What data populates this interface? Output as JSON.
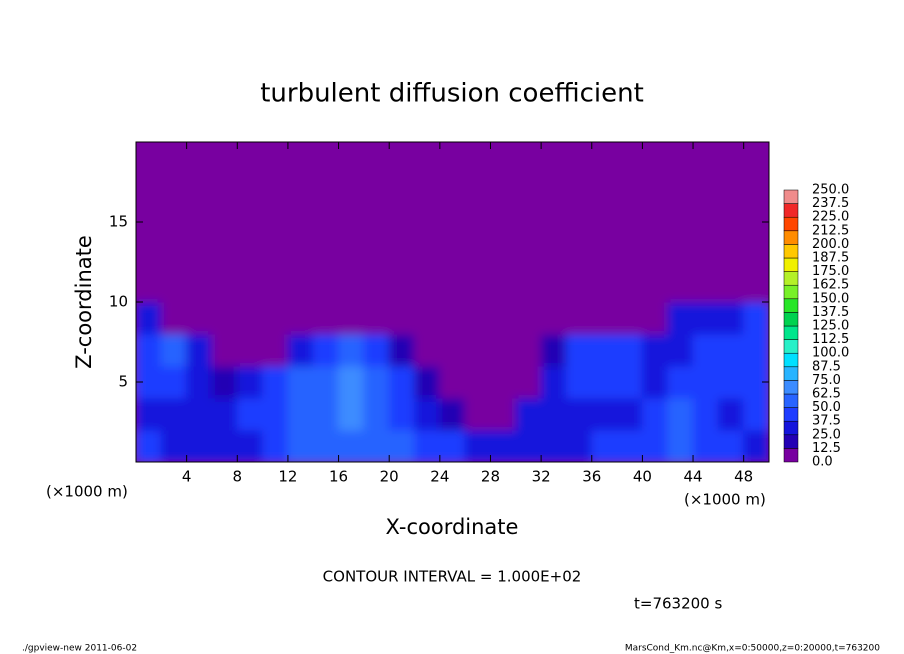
{
  "chart_data": {
    "type": "heatmap",
    "title": "turbulent diffusion coefficient",
    "x_label": "X-coordinate",
    "y_label": "Z-coordinate",
    "x_unit": "(×1000 m)",
    "y_unit": "(×1000 m)",
    "xlim": [
      0,
      50
    ],
    "ylim": [
      0,
      20
    ],
    "xticks": [
      4,
      8,
      12,
      16,
      20,
      24,
      28,
      32,
      36,
      40,
      44,
      48
    ],
    "yticks": [
      5,
      10,
      15
    ],
    "xbins": [
      0,
      2,
      4,
      6,
      8,
      10,
      12,
      14,
      16,
      18,
      20,
      22,
      24,
      26,
      28,
      30,
      32,
      34,
      36,
      38,
      40,
      42,
      44,
      46,
      48,
      50
    ],
    "ybins": [
      0,
      2,
      4,
      6,
      8,
      10,
      12,
      14,
      16,
      18,
      20
    ],
    "values": [
      [
        40,
        35,
        30,
        25,
        35,
        45,
        50,
        55,
        60,
        55,
        50,
        45,
        40,
        35,
        30,
        25,
        30,
        35,
        40,
        40,
        45,
        60,
        45,
        40,
        35
      ],
      [
        35,
        30,
        25,
        35,
        40,
        45,
        55,
        60,
        65,
        60,
        45,
        35,
        20,
        10,
        0,
        30,
        35,
        30,
        30,
        35,
        40,
        55,
        40,
        35,
        40
      ],
      [
        40,
        45,
        25,
        20,
        30,
        40,
        50,
        55,
        65,
        60,
        40,
        20,
        10,
        0,
        0,
        0,
        35,
        40,
        40,
        40,
        35,
        45,
        45,
        40,
        45
      ],
      [
        40,
        50,
        30,
        0,
        0,
        0,
        25,
        45,
        50,
        40,
        15,
        0,
        0,
        0,
        0,
        0,
        20,
        40,
        45,
        40,
        30,
        35,
        40,
        45,
        45
      ],
      [
        30,
        0,
        0,
        0,
        0,
        0,
        0,
        0,
        0,
        0,
        0,
        0,
        0,
        0,
        0,
        0,
        0,
        0,
        0,
        0,
        10,
        25,
        30,
        35,
        40
      ],
      [
        0,
        0,
        0,
        0,
        0,
        0,
        0,
        0,
        0,
        0,
        0,
        0,
        0,
        0,
        0,
        0,
        0,
        0,
        0,
        0,
        0,
        0,
        0,
        0,
        0
      ],
      [
        0,
        0,
        0,
        0,
        0,
        0,
        0,
        0,
        0,
        0,
        0,
        0,
        0,
        0,
        0,
        0,
        0,
        0,
        0,
        0,
        0,
        0,
        0,
        0,
        0
      ],
      [
        0,
        0,
        0,
        0,
        0,
        0,
        0,
        0,
        0,
        0,
        0,
        0,
        0,
        0,
        0,
        0,
        0,
        0,
        0,
        0,
        0,
        0,
        0,
        0,
        0
      ],
      [
        0,
        0,
        0,
        0,
        0,
        0,
        0,
        0,
        0,
        0,
        0,
        0,
        0,
        0,
        0,
        0,
        0,
        0,
        0,
        0,
        0,
        0,
        0,
        0,
        0
      ],
      [
        0,
        0,
        0,
        0,
        0,
        0,
        0,
        0,
        0,
        0,
        0,
        0,
        0,
        0,
        0,
        0,
        0,
        0,
        0,
        0,
        0,
        0,
        0,
        0,
        0
      ]
    ],
    "levels": [
      {
        "value": 0,
        "label": "0.0"
      },
      12.5,
      {
        "value": 25,
        "label": "25.0"
      },
      37.5,
      {
        "value": 50,
        "label": "50.0"
      },
      62.5,
      {
        "value": 75,
        "label": "75.0"
      },
      87.5,
      {
        "value": 100,
        "label": "100.0"
      },
      112.5,
      {
        "value": 125,
        "label": "125.0"
      },
      137.5,
      {
        "value": 150,
        "label": "150.0"
      },
      162.5,
      {
        "value": 175,
        "label": "175.0"
      },
      187.5,
      {
        "value": 200,
        "label": "200.0"
      },
      212.5,
      {
        "value": 225,
        "label": "225.0"
      },
      237.5,
      {
        "value": 250,
        "label": "250.0"
      }
    ],
    "colors": [
      "#7800a0",
      "#2400b4",
      "#1414dc",
      "#1e3cff",
      "#2864ff",
      "#3c8cff",
      "#28b4ff",
      "#00e0ff",
      "#28f0c8",
      "#00e68c",
      "#00d250",
      "#28e628",
      "#78f028",
      "#b4f028",
      "#f0f000",
      "#ffc800",
      "#ff8c00",
      "#ff4600",
      "#f02828",
      "#f08c8c"
    ],
    "contour_interval": "CONTOUR INTERVAL = 1.000E+02",
    "time_note": "t=763200 s",
    "footer_left": "./gpview-new  2011-06-02",
    "footer_right": "MarsCond_Km.nc@Km,x=0:50000,z=0:20000,t=763200"
  }
}
